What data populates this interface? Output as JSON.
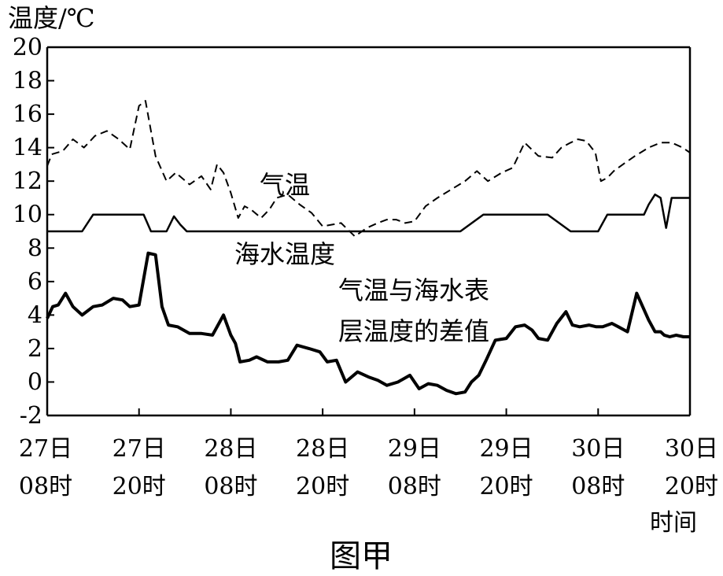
{
  "chart_data": {
    "type": "line",
    "caption": "图甲",
    "ylabel": "温度/℃",
    "xlabel": "时间",
    "ylim": [
      -2,
      20
    ],
    "yticks": [
      "-2",
      "0",
      "2",
      "4",
      "6",
      "8",
      "10",
      "12",
      "14",
      "16",
      "18",
      "20"
    ],
    "grid": false,
    "legend": "none",
    "categories": [
      {
        "day": "27日",
        "time": "08时"
      },
      {
        "day": "27日",
        "time": "20时"
      },
      {
        "day": "28日",
        "time": "08时"
      },
      {
        "day": "28日",
        "time": "20时"
      },
      {
        "day": "29日",
        "time": "08时"
      },
      {
        "day": "29日",
        "time": "20时"
      },
      {
        "day": "30日",
        "time": "08时"
      },
      {
        "day": "30日",
        "time": "20时"
      }
    ],
    "series": [
      {
        "name": "气温",
        "style": "dashed",
        "x": [
          0,
          0.05,
          0.17,
          0.28,
          0.4,
          0.52,
          0.65,
          0.78,
          0.9,
          1.0,
          1.07,
          1.18,
          1.3,
          1.4,
          1.55,
          1.68,
          1.78,
          1.85,
          1.92,
          2.0,
          2.08,
          2.15,
          2.22,
          2.33,
          2.42,
          2.5,
          2.62,
          2.75,
          2.88,
          3.0,
          3.1,
          3.2,
          3.35,
          3.48,
          3.6,
          3.7,
          3.8,
          3.9,
          4.0,
          4.12,
          4.25,
          4.4,
          4.55,
          4.68,
          4.8,
          4.95,
          5.07,
          5.2,
          5.35,
          5.5,
          5.6,
          5.7,
          5.78,
          5.87,
          5.97,
          6.03,
          6.1,
          6.17,
          6.27,
          6.4,
          6.55,
          6.68,
          6.8,
          6.92,
          7.0
        ],
        "values": [
          12.9,
          13.6,
          13.8,
          14.5,
          14.0,
          14.7,
          15.0,
          14.5,
          13.9,
          16.5,
          16.8,
          13.5,
          12.0,
          12.5,
          11.8,
          12.3,
          11.5,
          13.0,
          12.5,
          11.3,
          9.8,
          10.5,
          10.3,
          9.8,
          10.3,
          11.0,
          11.2,
          10.6,
          10.1,
          9.3,
          9.4,
          9.5,
          8.7,
          9.2,
          9.5,
          9.7,
          9.7,
          9.5,
          9.6,
          10.5,
          11.0,
          11.5,
          12.0,
          12.6,
          12.0,
          12.5,
          12.8,
          14.3,
          13.5,
          13.4,
          14.0,
          14.3,
          14.5,
          14.4,
          13.7,
          12.0,
          12.2,
          12.6,
          13.0,
          13.5,
          14.0,
          14.3,
          14.3,
          14.0,
          13.7
        ]
      },
      {
        "name": "海水温度",
        "style": "solid",
        "x": [
          0,
          0.28,
          0.38,
          0.5,
          1.05,
          1.13,
          1.3,
          1.38,
          1.45,
          1.52,
          2.0,
          2.5,
          3.0,
          3.5,
          3.92,
          4.0,
          4.25,
          4.5,
          4.75,
          5.0,
          5.3,
          5.45,
          5.7,
          5.85,
          6.0,
          6.1,
          6.5,
          6.55,
          6.62,
          6.68,
          6.74,
          6.8,
          6.95,
          7.0
        ],
        "values": [
          9.0,
          9.0,
          9.0,
          10.0,
          10.0,
          9.0,
          9.0,
          9.9,
          9.4,
          9.0,
          9.0,
          9.0,
          9.0,
          9.0,
          9.0,
          9.0,
          9.0,
          9.0,
          10.0,
          10.0,
          10.0,
          10.0,
          9.0,
          9.0,
          9.0,
          10.0,
          10.0,
          10.6,
          11.2,
          11.0,
          9.2,
          11.0,
          11.0,
          11.0
        ]
      },
      {
        "name": "气温与海水表层温度的差值",
        "style": "solid-bold",
        "x": [
          0,
          0.06,
          0.12,
          0.2,
          0.28,
          0.38,
          0.5,
          0.6,
          0.72,
          0.82,
          0.9,
          1.0,
          1.1,
          1.18,
          1.25,
          1.32,
          1.42,
          1.55,
          1.68,
          1.8,
          1.92,
          2.0,
          2.05,
          2.1,
          2.2,
          2.28,
          2.4,
          2.52,
          2.62,
          2.72,
          2.85,
          2.97,
          3.05,
          3.15,
          3.25,
          3.38,
          3.5,
          3.6,
          3.7,
          3.82,
          3.95,
          4.05,
          4.15,
          4.25,
          4.35,
          4.45,
          4.55,
          4.62,
          4.7,
          4.78,
          4.88,
          5.0,
          5.1,
          5.2,
          5.28,
          5.35,
          5.45,
          5.55,
          5.65,
          5.72,
          5.8,
          5.9,
          5.98,
          6.05,
          6.15,
          6.22,
          6.32,
          6.42,
          6.55,
          6.62,
          6.68,
          6.72,
          6.78,
          6.85,
          6.93,
          7.0
        ],
        "values": [
          3.8,
          4.5,
          4.6,
          5.3,
          4.5,
          4.0,
          4.5,
          4.6,
          5.0,
          4.9,
          4.5,
          4.6,
          7.7,
          7.6,
          4.5,
          3.4,
          3.3,
          2.9,
          2.9,
          2.8,
          4.0,
          2.8,
          2.3,
          1.2,
          1.3,
          1.5,
          1.2,
          1.2,
          1.3,
          2.2,
          2.0,
          1.8,
          1.2,
          1.3,
          0.0,
          0.6,
          0.3,
          0.1,
          -0.2,
          0.0,
          0.4,
          -0.4,
          -0.1,
          -0.2,
          -0.5,
          -0.7,
          -0.6,
          0.0,
          0.4,
          1.3,
          2.5,
          2.6,
          3.3,
          3.4,
          3.1,
          2.6,
          2.5,
          3.5,
          4.2,
          3.4,
          3.3,
          3.4,
          3.3,
          3.3,
          3.5,
          3.3,
          3.0,
          5.3,
          3.7,
          3.0,
          3.0,
          2.8,
          2.7,
          2.8,
          2.7,
          2.7
        ]
      }
    ],
    "annotations": [
      {
        "text": "气温",
        "series": "气温"
      },
      {
        "text": "海水温度",
        "series": "海水温度"
      },
      {
        "text_lines": [
          "气温与海水表",
          "层温度的差值"
        ],
        "series": "气温与海水表层温度的差值"
      }
    ]
  }
}
